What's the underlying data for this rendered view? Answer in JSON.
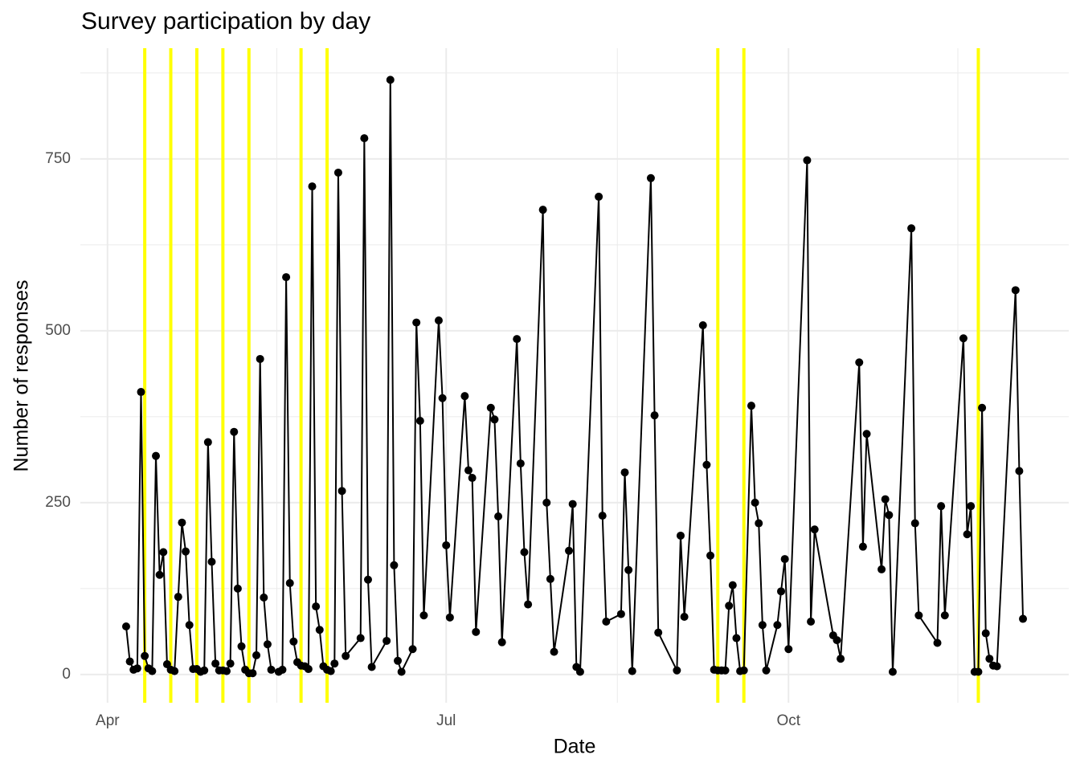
{
  "chart_data": {
    "type": "line",
    "title": "Survey participation by day",
    "x_label": "Date",
    "y_label": "Number of responses",
    "color": "#000000",
    "x": [
      5,
      6,
      7,
      8,
      9,
      10,
      11,
      12,
      13,
      14,
      15,
      16,
      17,
      18,
      19,
      20,
      21,
      22,
      23,
      24,
      25,
      26,
      27,
      28,
      29,
      30,
      31,
      32,
      33,
      34,
      35,
      36,
      37,
      38,
      39,
      40,
      41,
      42,
      43,
      44,
      46,
      47,
      48,
      49,
      50,
      51,
      52,
      53,
      54,
      55,
      56,
      57,
      58,
      59,
      60,
      61,
      62,
      63,
      64,
      68,
      69,
      70,
      71,
      75,
      76,
      77,
      78,
      79,
      82,
      83,
      84,
      85,
      89,
      90,
      91,
      92,
      96,
      97,
      98,
      99,
      103,
      104,
      105,
      106,
      110,
      111,
      112,
      113,
      117,
      118,
      119,
      120,
      124,
      125,
      126,
      127,
      132,
      133,
      134,
      138,
      139,
      140,
      141,
      146,
      147,
      148,
      153,
      154,
      155,
      160,
      161,
      162,
      163,
      164,
      165,
      166,
      167,
      168,
      169,
      170,
      171,
      173,
      174,
      175,
      176,
      177,
      180,
      181,
      182,
      183,
      188,
      189,
      190,
      195,
      196,
      197,
      202,
      203,
      204,
      208,
      209,
      210,
      211,
      216,
      217,
      218,
      223,
      224,
      225,
      230,
      231,
      232,
      233,
      234,
      235,
      236,
      237,
      238,
      239,
      244,
      245,
      246
    ],
    "values": [
      70,
      19,
      7,
      9,
      411,
      27,
      9,
      5,
      318,
      145,
      178,
      15,
      7,
      5,
      113,
      221,
      179,
      72,
      8,
      8,
      4,
      6,
      338,
      164,
      16,
      6,
      6,
      5,
      16,
      353,
      125,
      41,
      7,
      2,
      2,
      28,
      459,
      112,
      44,
      7,
      4,
      7,
      578,
      133,
      48,
      18,
      13,
      12,
      8,
      710,
      99,
      65,
      12,
      7,
      5,
      16,
      730,
      267,
      27,
      53,
      780,
      138,
      11,
      49,
      865,
      159,
      20,
      4,
      37,
      512,
      369,
      86,
      515,
      402,
      188,
      83,
      405,
      297,
      286,
      62,
      388,
      371,
      230,
      47,
      488,
      307,
      178,
      102,
      676,
      250,
      139,
      33,
      180,
      248,
      11,
      4,
      695,
      231,
      77,
      88,
      294,
      152,
      5,
      722,
      377,
      61,
      6,
      202,
      84,
      508,
      305,
      173,
      7,
      6,
      6,
      6,
      100,
      130,
      53,
      5,
      6,
      391,
      250,
      220,
      72,
      6,
      72,
      121,
      168,
      37,
      748,
      77,
      211,
      57,
      50,
      23,
      454,
      186,
      350,
      153,
      255,
      232,
      4,
      649,
      220,
      86,
      46,
      245,
      86,
      489,
      204,
      245,
      4,
      4,
      388,
      60,
      23,
      13,
      12,
      559,
      296,
      81
    ],
    "vlines": [
      10,
      17,
      24,
      31,
      38,
      52,
      59,
      164,
      171,
      234
    ],
    "vline_color": "#ffff00",
    "xlim": [
      -7.3,
      258.3
    ],
    "xticks": [
      {
        "value": 0,
        "label": "Apr"
      },
      {
        "value": 91,
        "label": "Jul"
      },
      {
        "value": 183,
        "label": "Oct"
      }
    ],
    "xminor": [
      45.5,
      137,
      228.5
    ],
    "ylim": [
      -41,
      911
    ],
    "yticks": [
      0,
      250,
      500,
      750
    ],
    "yminor": [
      125,
      375,
      625,
      875
    ],
    "grid": true
  }
}
